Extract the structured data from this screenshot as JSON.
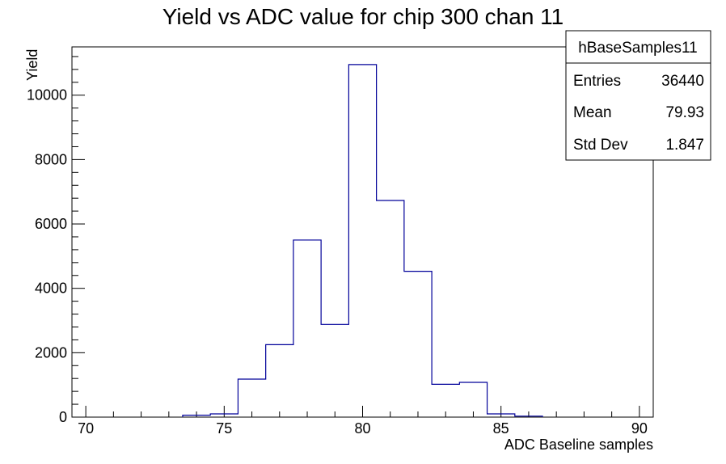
{
  "chart_data": {
    "type": "bar",
    "title": "Yield vs ADC value for chip 300 chan 11",
    "xlabel": "ADC Baseline samples",
    "ylabel": "Yield",
    "xlim": [
      69.5,
      90.5
    ],
    "ylim": [
      0,
      11500
    ],
    "x_ticks": [
      "70",
      "75",
      "80",
      "85",
      "90"
    ],
    "y_ticks": [
      "0",
      "2000",
      "4000",
      "6000",
      "8000",
      "10000"
    ],
    "bin_edges": [
      69.5,
      70.5,
      71.5,
      72.5,
      73.5,
      74.5,
      75.5,
      76.5,
      77.5,
      78.5,
      79.5,
      80.5,
      81.5,
      82.5,
      83.5,
      84.5,
      85.5,
      86.5,
      87.5,
      88.5,
      89.5,
      90.5
    ],
    "values": [
      0,
      0,
      0,
      0,
      60,
      100,
      1180,
      2250,
      5500,
      2880,
      10950,
      6730,
      4530,
      1020,
      1080,
      100,
      30,
      0,
      0,
      0,
      0
    ],
    "line_color": "#000099",
    "grid": false,
    "legend": "none"
  },
  "stats_box": {
    "name": "hBaseSamples11",
    "entries_label": "Entries",
    "entries_value": "36440",
    "mean_label": "Mean",
    "mean_value": "79.93",
    "stddev_label": "Std Dev",
    "stddev_value": "1.847"
  }
}
